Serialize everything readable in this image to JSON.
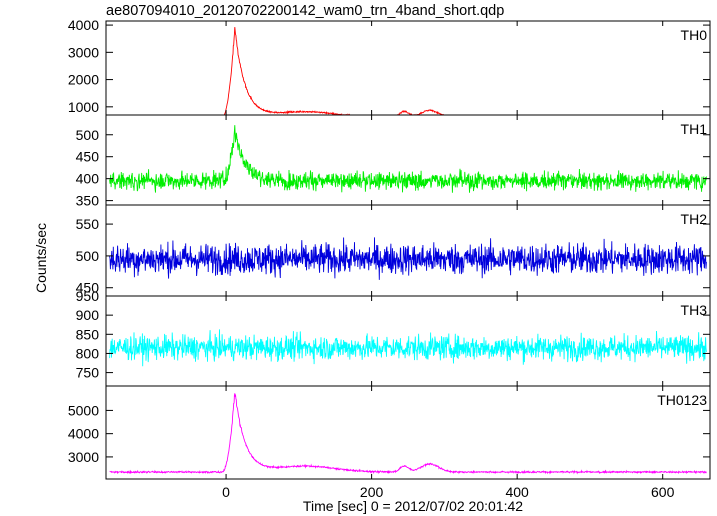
{
  "title": "ae807094010_20120702200142_wam0_trn_4band_short.qdp",
  "chart_data": {
    "type": "line",
    "title": "ae807094010_20120702200142_wam0_trn_4band_short.qdp",
    "xlabel": "Time [sec] 0 = 2012/07/02 20:01:42",
    "ylabel": "Counts/sec",
    "xlim": [
      -165,
      665
    ],
    "xticks": [
      0,
      200,
      400,
      600
    ],
    "grid": false,
    "legend": "none",
    "burst_peak_time": 12,
    "panels": [
      {
        "name": "TH0",
        "color": "#ff0000",
        "ylim": [
          700,
          4150
        ],
        "yticks": [
          1000,
          2000,
          3000,
          4000
        ],
        "baseline": 620,
        "noise": 25,
        "burst_peak": 3850,
        "features": [
          [
            110,
            40,
            200
          ],
          [
            280,
            12,
            250
          ],
          [
            245,
            6,
            220
          ]
        ]
      },
      {
        "name": "TH1",
        "color": "#00ee00",
        "ylim": [
          340,
          545
        ],
        "yticks": [
          350,
          400,
          450,
          500
        ],
        "baseline": 395,
        "noise": 20,
        "burst_peak": 510,
        "features": []
      },
      {
        "name": "TH2",
        "color": "#0000dd",
        "ylim": [
          437,
          580
        ],
        "yticks": [
          450,
          500,
          550
        ],
        "baseline": 495,
        "noise": 24,
        "burst_peak": 0,
        "features": []
      },
      {
        "name": "TH3",
        "color": "#00ffff",
        "ylim": [
          715,
          950
        ],
        "yticks": [
          750,
          800,
          850,
          900,
          950
        ],
        "baseline": 815,
        "noise": 32,
        "burst_peak": 0,
        "features": []
      },
      {
        "name": "TH0123",
        "color": "#ff00ff",
        "ylim": [
          2050,
          6050
        ],
        "yticks": [
          3000,
          4000,
          5000
        ],
        "baseline": 2350,
        "noise": 35,
        "burst_peak": 5800,
        "features": [
          [
            110,
            40,
            250
          ],
          [
            280,
            12,
            350
          ],
          [
            245,
            6,
            250
          ]
        ]
      }
    ]
  }
}
